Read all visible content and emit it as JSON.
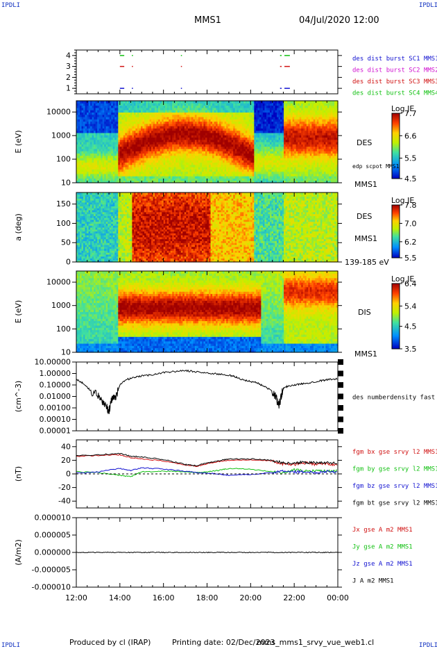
{
  "header": {
    "corner_label": "IPDLI",
    "title": "MMS1",
    "date": "04/Jul/2020 12:00"
  },
  "footer": {
    "produced_by": "Produced by cl (IRAP)",
    "printing_date": "Printing date: 02/Dec/2023",
    "file": "mms_mms1_srvy_vue_web1.cl"
  },
  "colors": {
    "blue": "#1010d0",
    "magenta": "#d010d0",
    "red": "#d01010",
    "green": "#10c010",
    "black": "#000000"
  },
  "chart_data": [
    {
      "type": "scatter",
      "panel": "burst",
      "ylim": [
        0.5,
        4.5
      ],
      "yticks": [
        "1",
        "2",
        "3",
        "4"
      ],
      "legend": [
        {
          "name": "des dist burst SC1 MMS1",
          "color": "#1010d0"
        },
        {
          "name": "des dist burst SC2 MMS2",
          "color": "#d010d0"
        },
        {
          "name": "des dist burst SC3 MMS3",
          "color": "#d01010"
        },
        {
          "name": "des dist burst SC4 MMS4",
          "color": "#10c010"
        }
      ],
      "intervals_hours": [
        [
          14.0,
          14.2
        ],
        [
          14.55,
          14.6
        ],
        [
          16.8,
          16.82
        ],
        [
          21.35,
          21.42
        ],
        [
          21.55,
          21.8
        ]
      ]
    },
    {
      "type": "heatmap",
      "panel": "des-energy",
      "ylabel": "E (eV)",
      "yscale": "log",
      "ylim": [
        10,
        30000
      ],
      "yticks": [
        "10",
        "100",
        "1000",
        "10000"
      ],
      "colorbar": {
        "label": "Log JE",
        "ticks": [
          "7.7",
          "6.6",
          "5.5",
          "4.5"
        ],
        "min": 4.5,
        "max": 7.7
      },
      "right_labels": [
        "DES",
        "edp scpot MMS1",
        "MMS1"
      ]
    },
    {
      "type": "heatmap",
      "panel": "des-pitch",
      "ylabel": "a (deg)",
      "ylim": [
        0,
        180
      ],
      "yticks": [
        "0",
        "50",
        "100",
        "150"
      ],
      "colorbar": {
        "label": "Log JE",
        "ticks": [
          "7.8",
          "7.0",
          "6.2",
          "5.5"
        ],
        "min": 5.5,
        "max": 7.8
      },
      "right_labels": [
        "DES",
        "MMS1",
        "139-185 eV"
      ]
    },
    {
      "type": "heatmap",
      "panel": "dis-energy",
      "ylabel": "E (eV)",
      "yscale": "log",
      "ylim": [
        10,
        30000
      ],
      "yticks": [
        "10",
        "100",
        "1000",
        "10000"
      ],
      "colorbar": {
        "label": "Log JE",
        "ticks": [
          "6.4",
          "5.4",
          "4.5",
          "3.5"
        ],
        "min": 3.5,
        "max": 6.4
      },
      "right_labels": [
        "DIS",
        "MMS1"
      ]
    },
    {
      "type": "line",
      "panel": "density",
      "ylabel": "(cm^-3)",
      "yscale": "log",
      "ylim": [
        1e-05,
        10
      ],
      "yticks": [
        "0.00001",
        "0.00010",
        "0.00100",
        "0.01000",
        "0.10000",
        "1.00000",
        "10.00000"
      ],
      "series": [
        {
          "name": "des numberdensity fast M",
          "color": "#000000",
          "x": [
            12.0,
            12.3,
            12.6,
            13.0,
            13.2,
            13.4,
            13.5,
            13.6,
            13.7,
            13.8,
            14.0,
            14.3,
            14.6,
            15.0,
            15.5,
            16.0,
            16.5,
            17.0,
            17.5,
            18.0,
            18.5,
            19.0,
            19.3,
            19.6,
            20.0,
            20.3,
            20.6,
            21.0,
            21.2,
            21.3,
            21.4,
            21.5,
            21.7,
            22.0,
            22.3,
            22.6,
            23.0,
            23.3,
            23.6,
            24.0
          ],
          "values": [
            0.3,
            0.15,
            0.04,
            0.01,
            0.004,
            0.001,
            0.0006,
            0.004,
            0.01,
            0.006,
            0.1,
            0.3,
            0.4,
            0.6,
            0.8,
            1.2,
            1.5,
            1.8,
            1.4,
            1.1,
            0.9,
            0.7,
            0.5,
            0.3,
            0.2,
            0.15,
            0.08,
            0.03,
            0.005,
            0.002,
            0.01,
            0.05,
            0.08,
            0.1,
            0.12,
            0.15,
            0.2,
            0.25,
            0.3,
            0.35
          ]
        }
      ]
    },
    {
      "type": "line",
      "panel": "magnetic-field",
      "ylabel": "(nT)",
      "ylim": [
        -50,
        50
      ],
      "yticks": [
        "-40",
        "-20",
        "0",
        "20",
        "40"
      ],
      "x": [
        12.0,
        13.0,
        14.0,
        14.5,
        15.0,
        16.0,
        17.0,
        17.5,
        18.0,
        18.5,
        19.0,
        20.0,
        21.0,
        21.5,
        22.0,
        22.5,
        23.0,
        23.5,
        24.0
      ],
      "series": [
        {
          "name": "fgm bx gse srvy l2 MMS1",
          "color": "#d01010",
          "values": [
            26,
            27,
            28,
            24,
            22,
            19,
            13,
            11,
            15,
            18,
            20,
            21,
            19,
            14,
            14,
            16,
            14,
            15,
            13
          ]
        },
        {
          "name": "fgm by gse srvy l2 MMS1",
          "color": "#10c010",
          "values": [
            3,
            2,
            -2,
            -4,
            3,
            4,
            3,
            2,
            3,
            5,
            8,
            7,
            3,
            1,
            6,
            4,
            5,
            4,
            4
          ]
        },
        {
          "name": "fgm bz gse srvy l2 MMS1",
          "color": "#1010d0",
          "values": [
            1,
            3,
            8,
            5,
            9,
            7,
            4,
            2,
            1,
            0,
            -2,
            -1,
            2,
            4,
            3,
            3,
            2,
            4,
            3
          ]
        },
        {
          "name": "fgm bt gse srvy l2 MMS1",
          "color": "#000000",
          "values": [
            27,
            28,
            30,
            26,
            25,
            21,
            14,
            12,
            16,
            19,
            22,
            22,
            20,
            16,
            16,
            17,
            16,
            17,
            15
          ]
        }
      ]
    },
    {
      "type": "line",
      "panel": "current",
      "ylabel": "(A/m2)",
      "xlabel": "",
      "ylim": [
        -1e-05,
        1e-05
      ],
      "yticks": [
        "-0.000010",
        "-0.000005",
        "0.000000",
        "0.000005",
        "0.000010"
      ],
      "xticks": [
        "12:00",
        "14:00",
        "16:00",
        "18:00",
        "20:00",
        "22:00",
        "00:00"
      ],
      "xlim": [
        12,
        24
      ],
      "series": [
        {
          "name": "Jx gse A m2 MMS1",
          "color": "#d01010",
          "values": [
            0,
            0
          ]
        },
        {
          "name": "Jy gse A m2 MMS1",
          "color": "#10c010",
          "values": [
            0,
            0
          ]
        },
        {
          "name": "Jz gse A m2 MMS1",
          "color": "#1010d0",
          "values": [
            0,
            0
          ]
        },
        {
          "name": "J A m2 MMS1",
          "color": "#000000",
          "values": [
            0,
            0
          ]
        }
      ]
    }
  ]
}
